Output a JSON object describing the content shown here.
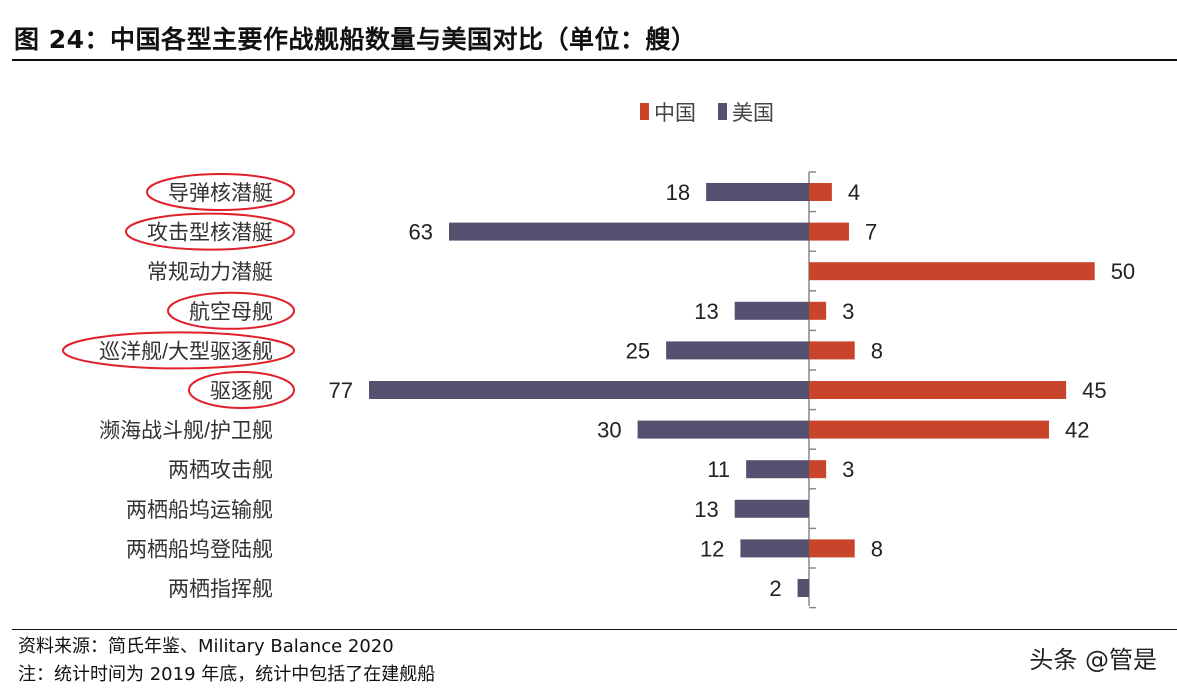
{
  "title": "图 24：中国各型主要作战舰船数量与美国对比（单位：艘）",
  "footer": {
    "source": "资料来源：简氏年鉴、Military Balance 2020",
    "note": "注：统计时间为 2019 年底，统计中包括了在建舰船"
  },
  "watermark": "头条 @管是",
  "chart_data": {
    "type": "bar",
    "orientation": "horizontal-diverging",
    "categories": [
      "导弹核潜艇",
      "攻击型核潜艇",
      "常规动力潜艇",
      "航空母舰",
      "巡洋舰/大型驱逐舰",
      "驱逐舰",
      "濒海战斗舰/护卫舰",
      "两栖攻击舰",
      "两栖船坞运输舰",
      "两栖船坞登陆舰",
      "两栖指挥舰"
    ],
    "series": [
      {
        "name": "中国",
        "color": "#c8442a",
        "values": [
          4,
          7,
          50,
          3,
          8,
          45,
          42,
          3,
          null,
          8,
          null
        ]
      },
      {
        "name": "美国",
        "color": "#535070",
        "values": [
          18,
          63,
          null,
          13,
          25,
          77,
          30,
          11,
          13,
          12,
          2
        ]
      }
    ],
    "highlighted_categories": [
      "导弹核潜艇",
      "攻击型核潜艇",
      "航空母舰",
      "巡洋舰/大型驱逐舰",
      "驱逐舰"
    ],
    "highlight_color": "#e0202a",
    "legend_position": "top",
    "grid": false
  }
}
